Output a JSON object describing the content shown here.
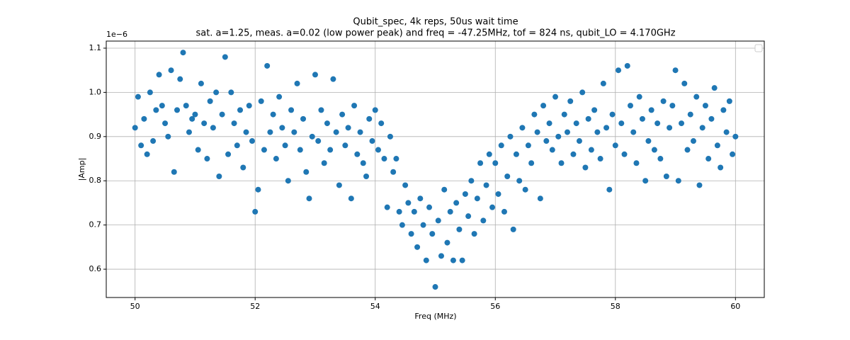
{
  "chart_data": {
    "type": "scatter",
    "title": "Qubit_spec, 4k reps, 50us wait time",
    "subtitle": "sat. a=1.25, meas. a=0.02 (low power peak) and freq = -47.25MHz, tof = 824 ns, qubit_LO = 4.170GHz",
    "x_label": "Freq (MHz)",
    "y_label": "|Amp|",
    "y_offset_label": "1e−6",
    "color": "#1f77b4",
    "grid": true,
    "xlim": [
      49.52,
      60.48
    ],
    "ylim": [
      0.536,
      1.116
    ],
    "xticks": [
      50,
      52,
      54,
      56,
      58,
      60
    ],
    "yticks": [
      0.6,
      0.7,
      0.8,
      0.9,
      {
        "value": 1,
        "label": "1.0"
      },
      1.1
    ],
    "x": [
      50,
      50.05,
      50.1,
      50.15,
      50.2,
      50.25,
      50.3,
      50.35,
      50.4,
      50.45,
      50.5,
      50.55,
      50.6,
      50.65,
      50.7,
      50.75,
      50.8,
      50.85,
      50.9,
      50.95,
      51,
      51.05,
      51.1,
      51.15,
      51.2,
      51.25,
      51.3,
      51.35,
      51.4,
      51.45,
      51.5,
      51.55,
      51.6,
      51.65,
      51.7,
      51.75,
      51.8,
      51.85,
      51.9,
      51.95,
      52,
      52.05,
      52.1,
      52.15,
      52.2,
      52.25,
      52.3,
      52.35,
      52.4,
      52.45,
      52.5,
      52.55,
      52.6,
      52.65,
      52.7,
      52.75,
      52.8,
      52.85,
      52.9,
      52.95,
      53,
      53.05,
      53.1,
      53.15,
      53.2,
      53.25,
      53.3,
      53.35,
      53.4,
      53.45,
      53.5,
      53.55,
      53.6,
      53.65,
      53.7,
      53.75,
      53.8,
      53.85,
      53.9,
      53.95,
      54,
      54.05,
      54.1,
      54.15,
      54.2,
      54.25,
      54.3,
      54.35,
      54.4,
      54.45,
      54.5,
      54.55,
      54.6,
      54.65,
      54.7,
      54.75,
      54.8,
      54.85,
      54.9,
      54.95,
      55,
      55.05,
      55.1,
      55.15,
      55.2,
      55.25,
      55.3,
      55.35,
      55.4,
      55.45,
      55.5,
      55.55,
      55.6,
      55.65,
      55.7,
      55.75,
      55.8,
      55.85,
      55.9,
      55.95,
      56,
      56.05,
      56.1,
      56.15,
      56.2,
      56.25,
      56.3,
      56.35,
      56.4,
      56.45,
      56.5,
      56.55,
      56.6,
      56.65,
      56.7,
      56.75,
      56.8,
      56.85,
      56.9,
      56.95,
      57,
      57.05,
      57.1,
      57.15,
      57.2,
      57.25,
      57.3,
      57.35,
      57.4,
      57.45,
      57.5,
      57.55,
      57.6,
      57.65,
      57.7,
      57.75,
      57.8,
      57.85,
      57.9,
      57.95,
      58,
      58.05,
      58.1,
      58.15,
      58.2,
      58.25,
      58.3,
      58.35,
      58.4,
      58.45,
      58.5,
      58.55,
      58.6,
      58.65,
      58.7,
      58.75,
      58.8,
      58.85,
      58.9,
      58.95,
      59,
      59.05,
      59.1,
      59.15,
      59.2,
      59.25,
      59.3,
      59.35,
      59.4,
      59.45,
      59.5,
      59.55,
      59.6,
      59.65,
      59.7,
      59.75,
      59.8,
      59.85,
      59.9,
      59.95,
      60
    ],
    "values": [
      0.92,
      0.99,
      0.88,
      0.94,
      0.86,
      1.0,
      0.89,
      0.96,
      1.04,
      0.97,
      0.93,
      0.9,
      1.05,
      0.82,
      0.96,
      1.03,
      1.09,
      0.97,
      0.91,
      0.94,
      0.95,
      0.87,
      1.02,
      0.93,
      0.85,
      0.98,
      0.92,
      1.0,
      0.81,
      0.95,
      1.08,
      0.86,
      1.0,
      0.93,
      0.88,
      0.96,
      0.83,
      0.91,
      0.97,
      0.89,
      0.73,
      0.78,
      0.98,
      0.87,
      1.06,
      0.91,
      0.95,
      0.85,
      0.99,
      0.92,
      0.88,
      0.8,
      0.96,
      0.91,
      1.02,
      0.87,
      0.94,
      0.82,
      0.76,
      0.9,
      1.04,
      0.89,
      0.96,
      0.84,
      0.93,
      0.87,
      1.03,
      0.91,
      0.79,
      0.95,
      0.88,
      0.92,
      0.76,
      0.97,
      0.86,
      0.91,
      0.84,
      0.81,
      0.94,
      0.89,
      0.96,
      0.87,
      0.93,
      0.85,
      0.74,
      0.9,
      0.82,
      0.85,
      0.73,
      0.7,
      0.79,
      0.75,
      0.68,
      0.73,
      0.65,
      0.76,
      0.7,
      0.62,
      0.74,
      0.68,
      0.56,
      0.71,
      0.63,
      0.78,
      0.66,
      0.73,
      0.62,
      0.75,
      0.69,
      0.62,
      0.77,
      0.72,
      0.8,
      0.68,
      0.76,
      0.84,
      0.71,
      0.79,
      0.86,
      0.74,
      0.84,
      0.77,
      0.88,
      0.73,
      0.81,
      0.9,
      0.69,
      0.86,
      0.8,
      0.92,
      0.78,
      0.88,
      0.84,
      0.95,
      0.91,
      0.76,
      0.97,
      0.89,
      0.93,
      0.87,
      0.99,
      0.9,
      0.84,
      0.95,
      0.91,
      0.98,
      0.86,
      0.93,
      0.89,
      1.0,
      0.83,
      0.94,
      0.87,
      0.96,
      0.91,
      0.85,
      1.02,
      0.92,
      0.78,
      0.95,
      0.88,
      1.05,
      0.93,
      0.86,
      1.06,
      0.97,
      0.91,
      0.84,
      0.99,
      0.94,
      0.8,
      0.89,
      0.96,
      0.87,
      0.93,
      0.85,
      0.98,
      0.81,
      0.92,
      0.97,
      1.05,
      0.8,
      0.93,
      1.02,
      0.87,
      0.95,
      0.89,
      0.99,
      0.79,
      0.92,
      0.97,
      0.85,
      0.94,
      1.01,
      0.88,
      0.83,
      0.96,
      0.91,
      0.98,
      0.86,
      0.9
    ]
  }
}
